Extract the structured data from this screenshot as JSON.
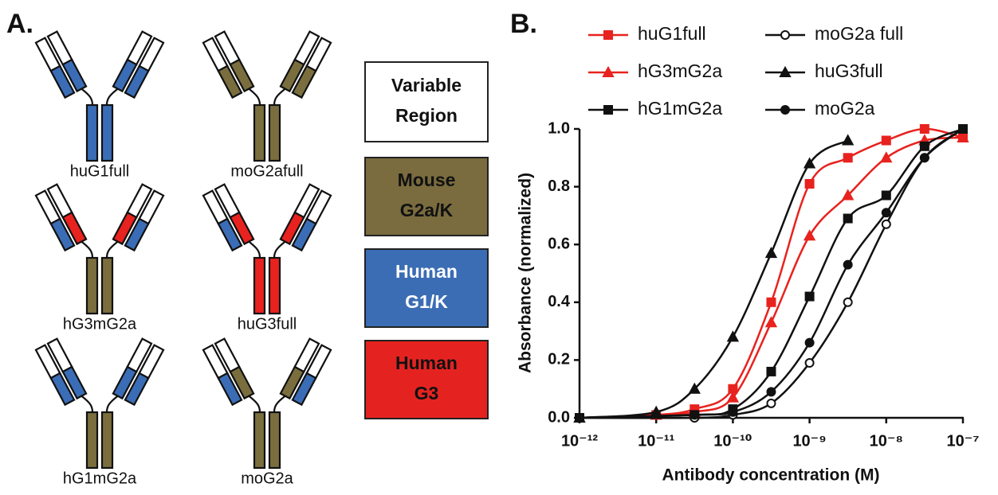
{
  "panels": {
    "a_label": "A.",
    "b_label": "B."
  },
  "antibodies": [
    {
      "name": "huG1full",
      "light_constant": "#3a6db5",
      "heavy_ch1": "#3a6db5",
      "fc": "#3a6db5"
    },
    {
      "name": "moG2afull",
      "light_constant": "#7a6e3f",
      "heavy_ch1": "#7a6e3f",
      "fc": "#7a6e3f"
    },
    {
      "name": "hG3mG2a",
      "light_constant": "#3a6db5",
      "heavy_ch1": "#e8221e",
      "fc": "#7a6e3f"
    },
    {
      "name": "huG3full",
      "light_constant": "#3a6db5",
      "heavy_ch1": "#e8221e",
      "fc": "#e8221e"
    },
    {
      "name": "hG1mG2a",
      "light_constant": "#3a6db5",
      "heavy_ch1": "#3a6db5",
      "fc": "#7a6e3f"
    },
    {
      "name": "moG2a",
      "light_constant": "#3a6db5",
      "heavy_ch1": "#7a6e3f",
      "fc": "#7a6e3f"
    }
  ],
  "region_legend": [
    {
      "lines": [
        "Variable",
        "Region"
      ],
      "color": "#ffffff",
      "text_color": "#111111"
    },
    {
      "lines": [
        "Mouse",
        "G2a/K"
      ],
      "color": "#7a6c3e",
      "text_color": "#111111"
    },
    {
      "lines": [
        "Human",
        "G1/K"
      ],
      "color": "#3b6db4",
      "text_color": "#ffffff"
    },
    {
      "lines": [
        "Human",
        "G3"
      ],
      "color": "#e42320",
      "text_color": "#111111"
    }
  ],
  "chart_data": {
    "type": "line",
    "x_label": "Antibody concentration (M)",
    "y_label": "Absorbance (normalized)",
    "xscale": "log",
    "xlim": [
      1e-12,
      1e-07
    ],
    "xticks": [
      {
        "value": 1e-12,
        "label": "10⁻¹²"
      },
      {
        "value": 1e-11,
        "label": "10⁻¹¹"
      },
      {
        "value": 1e-10,
        "label": "10⁻¹⁰"
      },
      {
        "value": 1e-09,
        "label": "10⁻⁹"
      },
      {
        "value": 1e-08,
        "label": "10⁻⁸"
      },
      {
        "value": 1e-07,
        "label": "10⁻⁷"
      }
    ],
    "ylim": [
      0,
      1
    ],
    "yticks": [
      {
        "value": 0,
        "label": "0.0"
      },
      0.2,
      0.4,
      0.6,
      0.8,
      {
        "value": 1,
        "label": "1.0"
      }
    ],
    "series": [
      {
        "name": "huG1full",
        "color": "#e8221e",
        "marker": "square",
        "filled": true,
        "x": [
          1e-12,
          1e-11,
          3.16e-11,
          1e-10,
          3.16e-10,
          1e-09,
          3.16e-09,
          1e-08,
          3.16e-08,
          1e-07
        ],
        "values": [
          0,
          0.01,
          0.03,
          0.1,
          0.4,
          0.81,
          0.9,
          0.96,
          1.0,
          0.97
        ]
      },
      {
        "name": "hG3mG2a",
        "color": "#e8221e",
        "marker": "triangle",
        "filled": true,
        "x": [
          1e-12,
          1e-11,
          3.16e-11,
          1e-10,
          3.16e-10,
          1e-09,
          3.16e-09,
          1e-08,
          3.16e-08,
          1e-07
        ],
        "values": [
          0,
          0.01,
          0.02,
          0.07,
          0.33,
          0.63,
          0.77,
          0.9,
          0.96,
          0.97
        ]
      },
      {
        "name": "hG1mG2a",
        "color": "#111111",
        "marker": "square",
        "filled": true,
        "x": [
          1e-12,
          3.16e-11,
          1e-10,
          3.16e-10,
          1e-09,
          3.16e-09,
          1e-08,
          3.16e-08,
          1e-07
        ],
        "values": [
          0,
          0.01,
          0.03,
          0.16,
          0.42,
          0.69,
          0.77,
          0.94,
          1.0
        ]
      },
      {
        "name": "moG2a full",
        "color": "#111111",
        "marker": "circle",
        "filled": false,
        "x": [
          1e-12,
          3.16e-11,
          1e-10,
          3.16e-10,
          1e-09,
          3.16e-09,
          1e-08,
          3.16e-08,
          1e-07
        ],
        "values": [
          0,
          0.0,
          0.01,
          0.05,
          0.19,
          0.4,
          0.67,
          0.9,
          1.0
        ]
      },
      {
        "name": "huG3full",
        "color": "#111111",
        "marker": "triangle",
        "filled": true,
        "x": [
          1e-12,
          1e-11,
          3.16e-11,
          1e-10,
          3.16e-10,
          1e-09,
          3.16e-09
        ],
        "values": [
          0,
          0.02,
          0.1,
          0.28,
          0.57,
          0.88,
          0.96
        ]
      },
      {
        "name": "moG2a",
        "color": "#111111",
        "marker": "circle",
        "filled": true,
        "x": [
          1e-12,
          3.16e-11,
          1e-10,
          3.16e-10,
          1e-09,
          3.16e-09,
          1e-08,
          3.16e-08,
          1e-07
        ],
        "values": [
          0,
          0.01,
          0.02,
          0.09,
          0.26,
          0.53,
          0.71,
          0.9,
          1.0
        ]
      }
    ]
  }
}
